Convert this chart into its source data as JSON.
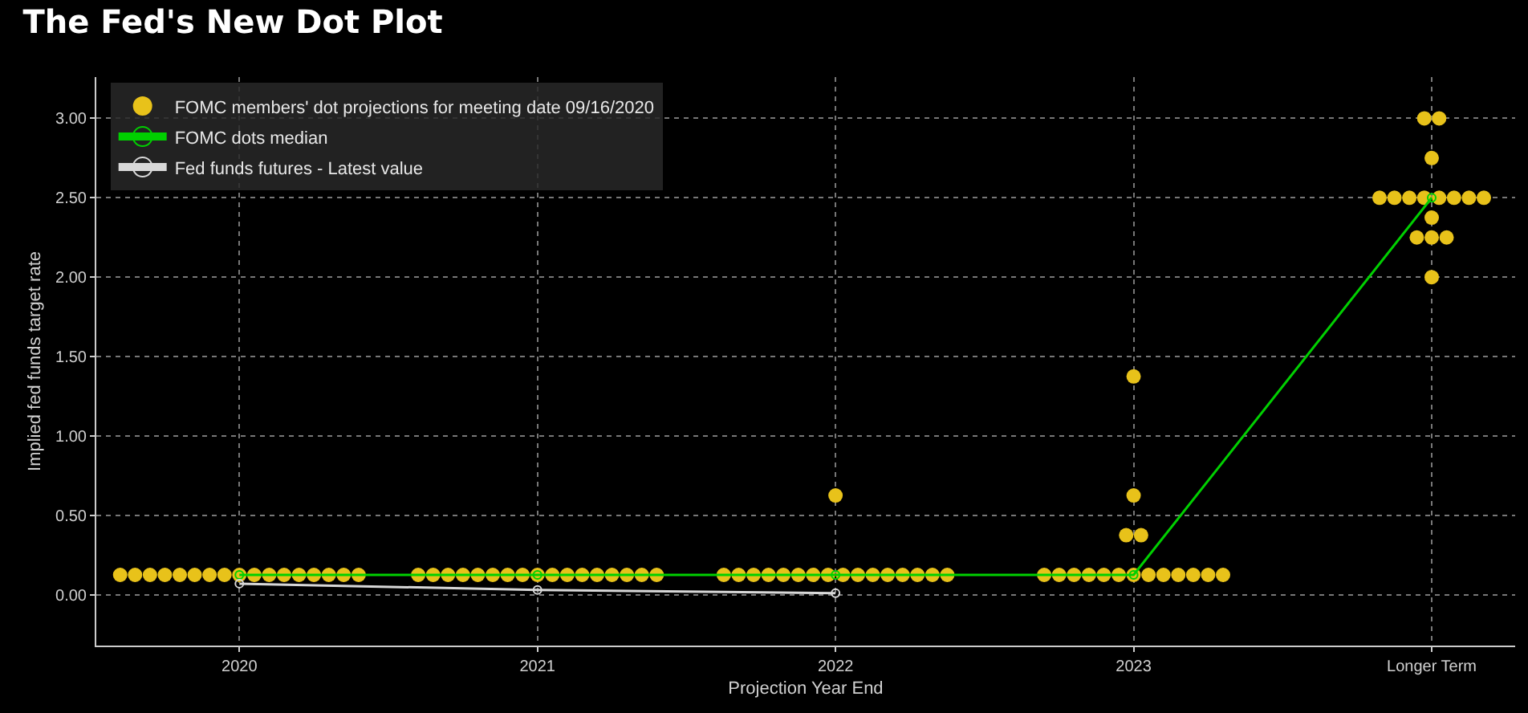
{
  "chart_data": {
    "type": "scatter",
    "title": "The Fed's New Dot Plot",
    "xlabel": "Projection Year End",
    "ylabel": "Implied fed funds target rate",
    "xlim": [
      2019.52,
      2024.28
    ],
    "xticks": [
      {
        "value": 2020,
        "label": "2020"
      },
      {
        "value": 2021,
        "label": "2021"
      },
      {
        "value": 2022,
        "label": "2022"
      },
      {
        "value": 2023,
        "label": "2023"
      },
      {
        "value": 2024,
        "label": "Longer Term"
      }
    ],
    "ylim": [
      -0.32,
      3.26
    ],
    "yticks": [
      {
        "value": 0,
        "label": "0.00"
      },
      {
        "value": 0.5,
        "label": "0.50"
      },
      {
        "value": 1,
        "label": "1.00"
      },
      {
        "value": 1.5,
        "label": "1.50"
      },
      {
        "value": 2,
        "label": "2.00"
      },
      {
        "value": 2.5,
        "label": "2.50"
      },
      {
        "value": 3,
        "label": "3.00"
      }
    ],
    "grid": true,
    "legend": "top left",
    "marker": "circle",
    "series": [
      {
        "name": "FOMC members' dot projections for meeting date 09/16/2020",
        "type": "scatter",
        "color": "#e8c21a",
        "x": [
          2019.6,
          2019.65,
          2019.7,
          2019.75,
          2019.8,
          2019.85,
          2019.9,
          2019.95,
          2020,
          2020.05,
          2020.1,
          2020.15,
          2020.2,
          2020.25,
          2020.3,
          2020.35,
          2020.4,
          2020.6,
          2020.65,
          2020.7,
          2020.75,
          2020.8,
          2020.85,
          2020.9,
          2020.95,
          2021,
          2021.05,
          2021.1,
          2021.15,
          2021.2,
          2021.25,
          2021.3,
          2021.35,
          2021.4,
          2021.625,
          2021.675,
          2021.725,
          2021.775,
          2021.825,
          2021.875,
          2021.925,
          2021.975,
          2022.025,
          2022.075,
          2022.125,
          2022.175,
          2022.225,
          2022.275,
          2022.325,
          2022.375,
          2022,
          2022.7,
          2022.75,
          2022.8,
          2022.85,
          2022.9,
          2022.95,
          2023,
          2023.05,
          2023.1,
          2023.15,
          2023.2,
          2023.25,
          2023.3,
          2022.975,
          2023.025,
          2023,
          2023,
          2023.975,
          2024.025,
          2024,
          2023.825,
          2023.875,
          2023.925,
          2023.975,
          2024.025,
          2024.075,
          2024.125,
          2024.175,
          2024,
          2023.95,
          2024,
          2024.05,
          2024
        ],
        "values": [
          0.125,
          0.125,
          0.125,
          0.125,
          0.125,
          0.125,
          0.125,
          0.125,
          0.125,
          0.125,
          0.125,
          0.125,
          0.125,
          0.125,
          0.125,
          0.125,
          0.125,
          0.125,
          0.125,
          0.125,
          0.125,
          0.125,
          0.125,
          0.125,
          0.125,
          0.125,
          0.125,
          0.125,
          0.125,
          0.125,
          0.125,
          0.125,
          0.125,
          0.125,
          0.125,
          0.125,
          0.125,
          0.125,
          0.125,
          0.125,
          0.125,
          0.125,
          0.125,
          0.125,
          0.125,
          0.125,
          0.125,
          0.125,
          0.125,
          0.125,
          0.625,
          0.125,
          0.125,
          0.125,
          0.125,
          0.125,
          0.125,
          0.125,
          0.125,
          0.125,
          0.125,
          0.125,
          0.125,
          0.125,
          0.375,
          0.375,
          0.625,
          1.375,
          3,
          3,
          2.75,
          2.5,
          2.5,
          2.5,
          2.5,
          2.5,
          2.5,
          2.5,
          2.5,
          2.375,
          2.25,
          2.25,
          2.25,
          2
        ]
      },
      {
        "name": "FOMC dots median",
        "type": "line",
        "color": "#00d000",
        "x": [
          2020,
          2021,
          2022,
          2023,
          2024
        ],
        "values": [
          0.125,
          0.125,
          0.125,
          0.125,
          2.5
        ]
      },
      {
        "name": "Fed funds futures - Latest value",
        "type": "line",
        "color": "#d8d8d8",
        "x": [
          2020,
          2021,
          2022
        ],
        "values": [
          0.07,
          0.03,
          0.01
        ]
      }
    ]
  }
}
